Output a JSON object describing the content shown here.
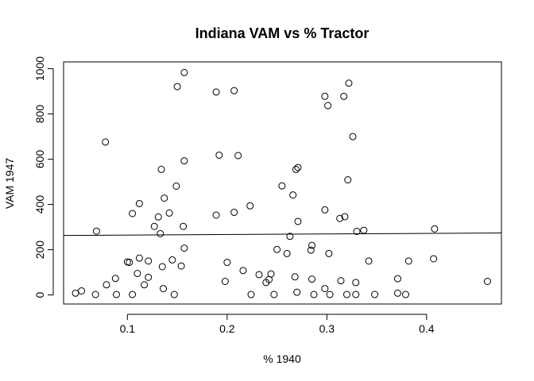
{
  "chart_data": {
    "type": "scatter",
    "title": "Indiana VAM vs % Tractor",
    "xlabel": "% 1940",
    "ylabel": "VAM 1947",
    "xlim": [
      0.036,
      0.475
    ],
    "ylim": [
      -40,
      1030
    ],
    "xticks": [
      0.1,
      0.2,
      0.3,
      0.4
    ],
    "xtick_labels": [
      "0.1",
      "0.2",
      "0.3",
      "0.4"
    ],
    "yticks": [
      0,
      200,
      400,
      600,
      800,
      1000
    ],
    "ytick_labels": [
      "0",
      "200",
      "400",
      "600",
      "800",
      "1000"
    ],
    "grid": false,
    "legend": "none",
    "trend_line": {
      "type": "linear",
      "from": [
        0.036,
        263
      ],
      "to": [
        0.475,
        274
      ]
    },
    "points": [
      [
        0.157,
        983
      ],
      [
        0.322,
        936
      ],
      [
        0.15,
        921
      ],
      [
        0.189,
        897
      ],
      [
        0.207,
        903
      ],
      [
        0.298,
        878
      ],
      [
        0.317,
        878
      ],
      [
        0.301,
        837
      ],
      [
        0.078,
        676
      ],
      [
        0.326,
        700
      ],
      [
        0.192,
        618
      ],
      [
        0.211,
        616
      ],
      [
        0.157,
        593
      ],
      [
        0.134,
        555
      ],
      [
        0.271,
        563
      ],
      [
        0.269,
        555
      ],
      [
        0.321,
        509
      ],
      [
        0.149,
        481
      ],
      [
        0.255,
        482
      ],
      [
        0.266,
        442
      ],
      [
        0.137,
        428
      ],
      [
        0.112,
        404
      ],
      [
        0.223,
        394
      ],
      [
        0.298,
        376
      ],
      [
        0.105,
        360
      ],
      [
        0.142,
        362
      ],
      [
        0.207,
        365
      ],
      [
        0.189,
        353
      ],
      [
        0.131,
        345
      ],
      [
        0.313,
        338
      ],
      [
        0.318,
        346
      ],
      [
        0.271,
        325
      ],
      [
        0.127,
        303
      ],
      [
        0.156,
        303
      ],
      [
        0.069,
        282
      ],
      [
        0.133,
        271
      ],
      [
        0.33,
        281
      ],
      [
        0.337,
        286
      ],
      [
        0.408,
        292
      ],
      [
        0.263,
        259
      ],
      [
        0.285,
        219
      ],
      [
        0.157,
        207
      ],
      [
        0.25,
        201
      ],
      [
        0.284,
        198
      ],
      [
        0.26,
        183
      ],
      [
        0.302,
        183
      ],
      [
        0.112,
        163
      ],
      [
        0.407,
        160
      ],
      [
        0.1,
        146
      ],
      [
        0.102,
        144
      ],
      [
        0.121,
        150
      ],
      [
        0.145,
        155
      ],
      [
        0.2,
        144
      ],
      [
        0.342,
        150
      ],
      [
        0.382,
        150
      ],
      [
        0.135,
        125
      ],
      [
        0.154,
        128
      ],
      [
        0.11,
        95
      ],
      [
        0.216,
        108
      ],
      [
        0.232,
        90
      ],
      [
        0.239,
        55
      ],
      [
        0.088,
        73
      ],
      [
        0.121,
        78
      ],
      [
        0.244,
        93
      ],
      [
        0.268,
        80
      ],
      [
        0.285,
        70
      ],
      [
        0.371,
        72
      ],
      [
        0.117,
        45
      ],
      [
        0.198,
        60
      ],
      [
        0.314,
        63
      ],
      [
        0.329,
        55
      ],
      [
        0.079,
        45
      ],
      [
        0.461,
        60
      ],
      [
        0.242,
        68
      ],
      [
        0.136,
        28
      ],
      [
        0.298,
        28
      ],
      [
        0.054,
        18
      ],
      [
        0.048,
        8
      ],
      [
        0.068,
        2
      ],
      [
        0.089,
        2
      ],
      [
        0.105,
        2
      ],
      [
        0.147,
        2
      ],
      [
        0.224,
        2
      ],
      [
        0.247,
        2
      ],
      [
        0.27,
        12
      ],
      [
        0.287,
        2
      ],
      [
        0.303,
        2
      ],
      [
        0.32,
        2
      ],
      [
        0.329,
        2
      ],
      [
        0.348,
        2
      ],
      [
        0.371,
        8
      ],
      [
        0.379,
        2
      ]
    ]
  }
}
